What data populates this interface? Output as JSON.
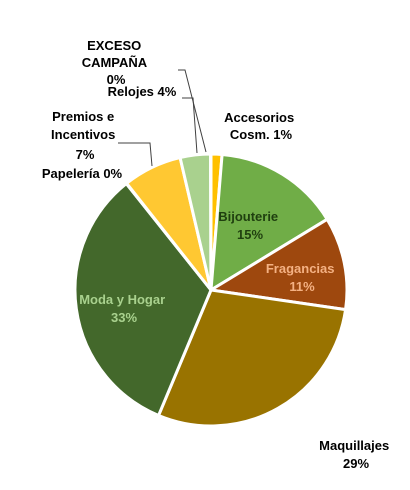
{
  "chart_data": {
    "type": "pie",
    "title": "",
    "slices": [
      {
        "name": "Accesorios Cosm.",
        "value_label": "1%",
        "value": 1.3,
        "color": "#FFC000"
      },
      {
        "name": "Bijouterie",
        "value_label": "15%",
        "value": 15,
        "color": "#70AD47"
      },
      {
        "name": "Fragancias",
        "value_label": "11%",
        "value": 11,
        "color": "#9E480E"
      },
      {
        "name": "Maquillajes",
        "value_label": "29%",
        "value": 29,
        "color": "#997300"
      },
      {
        "name": "Moda y Hogar",
        "value_label": "33%",
        "value": 33,
        "color": "#43682B"
      },
      {
        "name": "Papelería",
        "value_label": "0%",
        "value": 0.05,
        "color": "#A9D18E"
      },
      {
        "name": "Premios e Incentivos",
        "value_label": "7%",
        "value": 7,
        "color": "#FFC832"
      },
      {
        "name": "Relojes",
        "value_label": "4%",
        "value": 3.6,
        "color": "#A9D18E"
      },
      {
        "name": "EXCESO CAMPAÑA",
        "value_label": "0%",
        "value": 0.05,
        "color": "#ED7D31"
      }
    ],
    "labels": {
      "accesorios": {
        "line1": "Accesorios",
        "line2": "Cosm. 1%"
      },
      "bijouterie": {
        "line1": "Bijouterie",
        "line2": "15%"
      },
      "fragancias": {
        "line1": "Fragancias",
        "line2": "11%"
      },
      "maquillajes": {
        "line1": "Maquillajes",
        "line2": "29%"
      },
      "moda": {
        "line1": "Moda y Hogar",
        "line2": "33%"
      },
      "papeleria": {
        "line1": "Papelería 0%"
      },
      "premios": {
        "line1": "Premios e",
        "line2": "Incentivos",
        "line3": "7%"
      },
      "relojes": {
        "line1": "Relojes 4%"
      },
      "exceso": {
        "line1": "EXCESO",
        "line2": "CAMPAÑA",
        "line3": "0%"
      }
    },
    "label_colors": {
      "outside": "#000000",
      "bijouterie": "#1F3F0F",
      "fragancias": "#F4B183",
      "moda": "#A9D18E"
    },
    "legend": "none"
  }
}
